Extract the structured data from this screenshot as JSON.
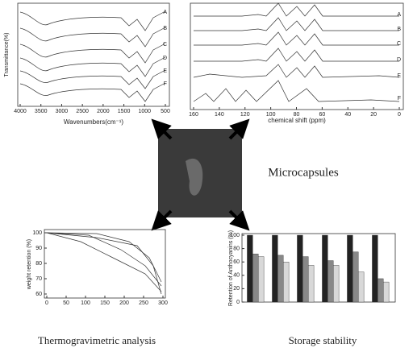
{
  "ftir": {
    "x_label": "Wavenumbers(cm⁻¹)",
    "y_label": "Transmittance(%)",
    "xticks": [
      4000,
      3500,
      3000,
      2500,
      2000,
      1500,
      1000,
      500
    ],
    "curves": [
      "A",
      "B",
      "C",
      "D",
      "E",
      "F"
    ]
  },
  "nmr": {
    "x_label": "chemical shift (ppm)",
    "xticks": [
      160,
      140,
      120,
      100,
      80,
      60,
      40,
      20,
      0
    ],
    "curves": [
      "A",
      "B",
      "C",
      "D",
      "E",
      "F"
    ]
  },
  "center": {
    "label": "Microcapsules"
  },
  "tga": {
    "title": "Thermogravimetric analysis",
    "y_label": "weight retention (%)",
    "yticks": [
      100,
      90,
      80,
      70,
      60
    ],
    "xticks": [
      0,
      50,
      100,
      150,
      200,
      250,
      300
    ]
  },
  "storage": {
    "title": "Storage stability",
    "y_label": "Retention of Anthocyanins (%)",
    "yticks": [
      0,
      20,
      40,
      60,
      80,
      100
    ],
    "series": [
      {
        "color": "#222222",
        "values": [
          100,
          100,
          100,
          100,
          100,
          100
        ]
      },
      {
        "color": "#888888",
        "values": [
          72,
          70,
          68,
          62,
          75,
          35
        ]
      },
      {
        "color": "#d8d8d8",
        "values": [
          68,
          60,
          55,
          55,
          45,
          30
        ]
      }
    ]
  }
}
